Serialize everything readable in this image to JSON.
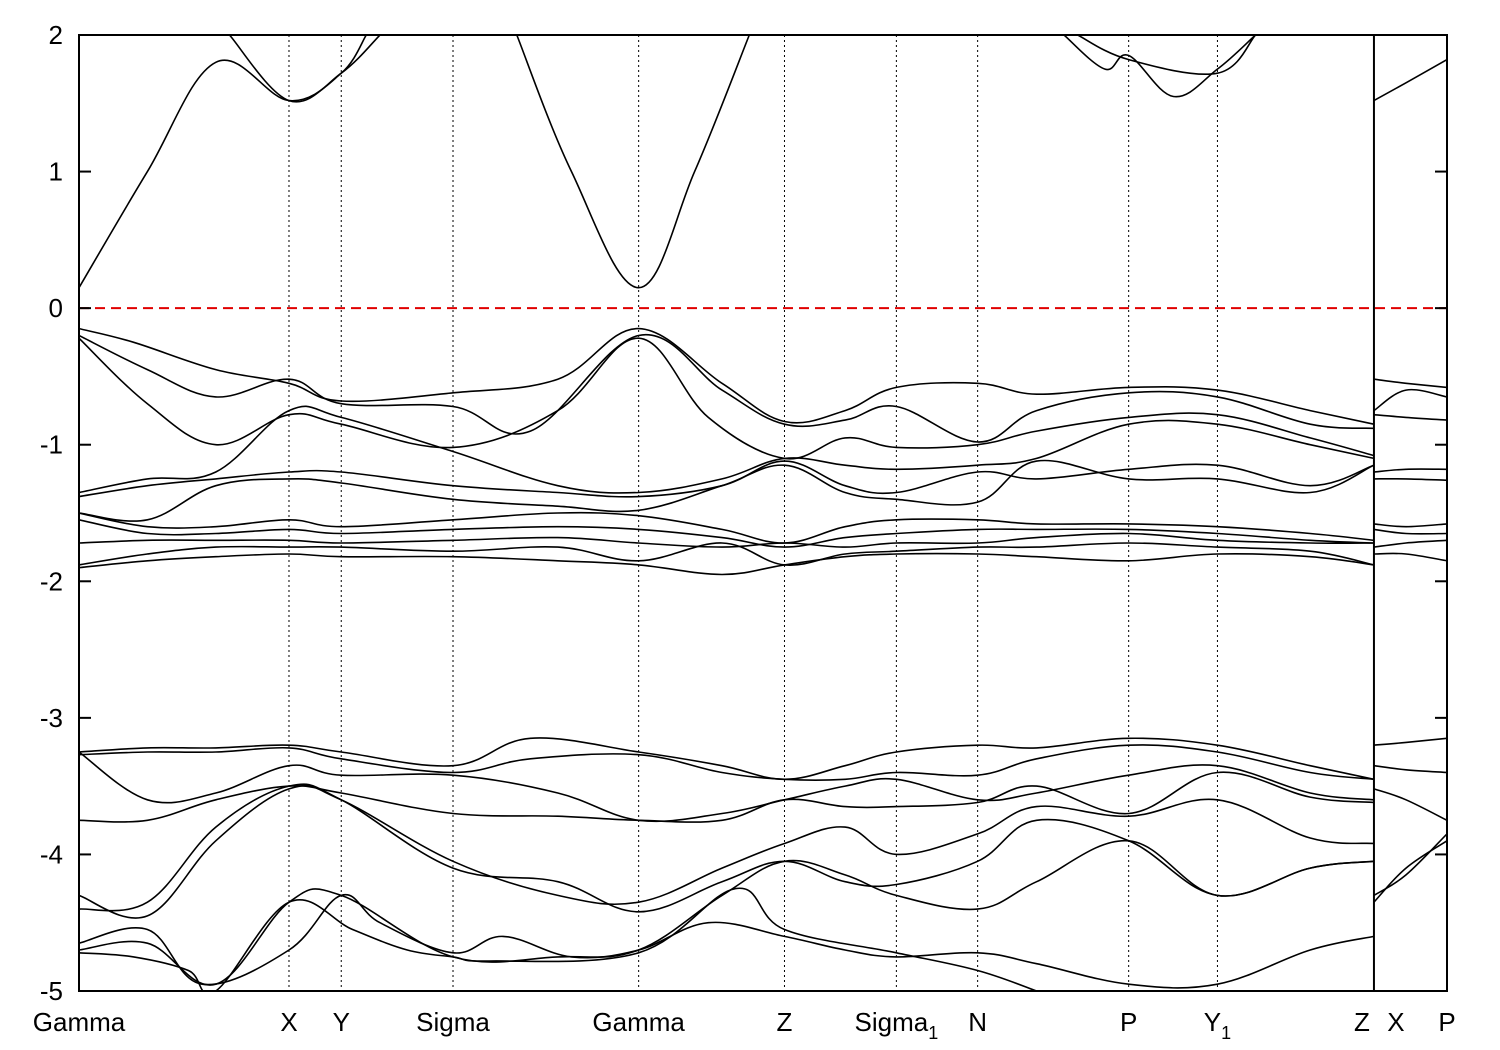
{
  "chart_data": {
    "type": "line",
    "title": "",
    "xlabel": "",
    "ylabel": "",
    "ylim": [
      -5,
      2
    ],
    "y_ticks": [
      -5,
      -4,
      -3,
      -2,
      -1,
      0,
      1,
      2
    ],
    "k_points": [
      {
        "label": "Gamma",
        "sub": "",
        "x": 0
      },
      {
        "label": "X",
        "sub": "",
        "x": 0.1535
      },
      {
        "label": "Y",
        "sub": "",
        "x": 0.1917
      },
      {
        "label": "Sigma",
        "sub": "",
        "x": 0.2734
      },
      {
        "label": "Gamma",
        "sub": "",
        "x": 0.4091
      },
      {
        "label": "Z",
        "sub": "",
        "x": 0.5157
      },
      {
        "label": "Sigma",
        "sub": "1",
        "x": 0.5975
      },
      {
        "label": "N",
        "sub": "",
        "x": 0.6569
      },
      {
        "label": "P",
        "sub": "",
        "x": 0.7673
      },
      {
        "label": "Y",
        "sub": "1",
        "x": 0.8322
      },
      {
        "label": "Z",
        "sub": "",
        "x": 0.9466
      },
      {
        "label": "X",
        "sub": "",
        "x": 0.9466
      },
      {
        "label": "P",
        "sub": "",
        "x": 1.0
      }
    ],
    "path_break_at": 0.9466,
    "fermi_level": {
      "y": 0,
      "color": "#e00000",
      "style": "dashed"
    },
    "band_color": "#000000",
    "bands": [
      {
        "x": [
          0,
          0.05,
          0.1,
          0.1535,
          0.1917,
          0.21
        ],
        "y": [
          0.15,
          1.0,
          1.8,
          1.52,
          1.72,
          2.0
        ]
      },
      {
        "x": [
          0.11,
          0.1535,
          0.1917,
          0.22
        ],
        "y": [
          2.0,
          1.52,
          1.72,
          2.0
        ]
      },
      {
        "x": [
          0.32,
          0.36,
          0.4091,
          0.45,
          0.49
        ],
        "y": [
          2.0,
          1.0,
          0.15,
          1.0,
          2.0
        ]
      },
      {
        "x": [
          0.72,
          0.75,
          0.7673,
          0.8,
          0.8322,
          0.86
        ],
        "y": [
          2.0,
          1.75,
          1.85,
          1.55,
          1.75,
          2.0
        ]
      },
      {
        "x": [
          0.73,
          0.7673,
          0.8322,
          0.86
        ],
        "y": [
          2.0,
          1.82,
          1.72,
          2.0
        ]
      },
      {
        "x": [
          0.9466,
          0.97,
          1.0
        ],
        "y": [
          1.52,
          1.65,
          1.82
        ]
      },
      {
        "x": [
          0,
          0.04,
          0.1,
          0.1535,
          0.1917,
          0.2734,
          0.35,
          0.4091,
          0.47,
          0.5157,
          0.56,
          0.5975,
          0.6569,
          0.7,
          0.7673,
          0.8322,
          0.9,
          0.9466
        ],
        "y": [
          -0.15,
          -0.25,
          -0.45,
          -0.55,
          -0.68,
          -0.62,
          -0.52,
          -0.15,
          -0.55,
          -0.83,
          -0.75,
          -0.58,
          -0.55,
          -0.63,
          -0.58,
          -0.6,
          -0.75,
          -0.85
        ]
      },
      {
        "x": [
          0,
          0.05,
          0.1,
          0.1535,
          0.1917,
          0.2734,
          0.33,
          0.4091,
          0.47,
          0.5157,
          0.56,
          0.5975,
          0.6569,
          0.7,
          0.7673,
          0.8322,
          0.9,
          0.9466
        ],
        "y": [
          -0.2,
          -0.45,
          -0.65,
          -0.52,
          -0.7,
          -0.72,
          -0.9,
          -0.2,
          -0.6,
          -0.85,
          -0.82,
          -0.72,
          -0.98,
          -0.75,
          -0.62,
          -0.65,
          -0.85,
          -0.88
        ]
      },
      {
        "x": [
          0,
          0.05,
          0.1,
          0.1535,
          0.1917,
          0.2734,
          0.35,
          0.4091,
          0.46,
          0.5157,
          0.56,
          0.5975,
          0.6569,
          0.7,
          0.7673,
          0.8322,
          0.9,
          0.9466
        ],
        "y": [
          -0.22,
          -0.7,
          -1.0,
          -0.78,
          -0.85,
          -1.02,
          -0.75,
          -0.22,
          -0.8,
          -1.1,
          -0.95,
          -1.02,
          -1.0,
          -0.9,
          -0.8,
          -0.78,
          -0.95,
          -1.08
        ]
      },
      {
        "x": [
          0,
          0.05,
          0.1,
          0.1535,
          0.1917,
          0.2734,
          0.35,
          0.4091,
          0.47,
          0.5157,
          0.56,
          0.5975,
          0.6569,
          0.7,
          0.7673,
          0.8322,
          0.9,
          0.9466
        ],
        "y": [
          -1.35,
          -1.25,
          -1.2,
          -0.75,
          -0.8,
          -1.05,
          -1.3,
          -1.35,
          -1.25,
          -1.1,
          -1.15,
          -1.18,
          -1.15,
          -1.1,
          -0.85,
          -0.85,
          -1.0,
          -1.1
        ]
      },
      {
        "x": [
          0,
          0.05,
          0.1,
          0.1535,
          0.1917,
          0.2734,
          0.35,
          0.4091,
          0.47,
          0.5157,
          0.56,
          0.5975,
          0.6569,
          0.7,
          0.7673,
          0.8322,
          0.9,
          0.9466
        ],
        "y": [
          -1.38,
          -1.3,
          -1.25,
          -1.2,
          -1.2,
          -1.3,
          -1.35,
          -1.38,
          -1.3,
          -1.12,
          -1.3,
          -1.35,
          -1.2,
          -1.25,
          -1.18,
          -1.15,
          -1.3,
          -1.15
        ]
      },
      {
        "x": [
          0,
          0.05,
          0.1,
          0.1535,
          0.1917,
          0.2734,
          0.35,
          0.4091,
          0.47,
          0.5157,
          0.56,
          0.5975,
          0.6569,
          0.7,
          0.7673,
          0.8322,
          0.9,
          0.9466
        ],
        "y": [
          -1.5,
          -1.55,
          -1.3,
          -1.25,
          -1.28,
          -1.4,
          -1.45,
          -1.48,
          -1.3,
          -1.15,
          -1.35,
          -1.4,
          -1.42,
          -1.12,
          -1.25,
          -1.25,
          -1.35,
          -1.15
        ]
      },
      {
        "x": [
          0,
          0.05,
          0.1,
          0.1535,
          0.1917,
          0.2734,
          0.35,
          0.4091,
          0.47,
          0.5157,
          0.56,
          0.5975,
          0.6569,
          0.7,
          0.7673,
          0.8322,
          0.9,
          0.9466
        ],
        "y": [
          -1.5,
          -1.6,
          -1.6,
          -1.55,
          -1.6,
          -1.55,
          -1.5,
          -1.52,
          -1.62,
          -1.72,
          -1.6,
          -1.55,
          -1.55,
          -1.58,
          -1.58,
          -1.6,
          -1.65,
          -1.7
        ]
      },
      {
        "x": [
          0,
          0.05,
          0.1,
          0.1535,
          0.1917,
          0.2734,
          0.35,
          0.4091,
          0.47,
          0.5157,
          0.56,
          0.5975,
          0.6569,
          0.7,
          0.7673,
          0.8322,
          0.9,
          0.9466
        ],
        "y": [
          -1.55,
          -1.65,
          -1.65,
          -1.62,
          -1.65,
          -1.62,
          -1.6,
          -1.62,
          -1.68,
          -1.75,
          -1.68,
          -1.65,
          -1.62,
          -1.62,
          -1.62,
          -1.65,
          -1.7,
          -1.72
        ]
      },
      {
        "x": [
          0,
          0.05,
          0.1,
          0.1535,
          0.1917,
          0.2734,
          0.35,
          0.4091,
          0.47,
          0.5157,
          0.56,
          0.5975,
          0.6569,
          0.7,
          0.7673,
          0.8322,
          0.9,
          0.9466
        ],
        "y": [
          -1.72,
          -1.7,
          -1.7,
          -1.7,
          -1.72,
          -1.7,
          -1.68,
          -1.72,
          -1.75,
          -1.72,
          -1.75,
          -1.72,
          -1.72,
          -1.68,
          -1.65,
          -1.7,
          -1.72,
          -1.72
        ]
      },
      {
        "x": [
          0,
          0.05,
          0.1,
          0.1535,
          0.1917,
          0.2734,
          0.35,
          0.4091,
          0.47,
          0.5157,
          0.56,
          0.5975,
          0.6569,
          0.7,
          0.7673,
          0.8322,
          0.9,
          0.9466
        ],
        "y": [
          -1.88,
          -1.8,
          -1.75,
          -1.75,
          -1.75,
          -1.78,
          -1.75,
          -1.85,
          -1.72,
          -1.88,
          -1.8,
          -1.78,
          -1.75,
          -1.75,
          -1.72,
          -1.75,
          -1.78,
          -1.88
        ]
      },
      {
        "x": [
          0,
          0.05,
          0.1,
          0.1535,
          0.1917,
          0.2734,
          0.35,
          0.4091,
          0.47,
          0.5157,
          0.56,
          0.5975,
          0.6569,
          0.7,
          0.7673,
          0.8322,
          0.9,
          0.9466
        ],
        "y": [
          -1.9,
          -1.85,
          -1.82,
          -1.8,
          -1.82,
          -1.82,
          -1.85,
          -1.88,
          -1.95,
          -1.88,
          -1.82,
          -1.8,
          -1.8,
          -1.82,
          -1.85,
          -1.8,
          -1.82,
          -1.88
        ]
      },
      {
        "x": [
          0,
          0.05,
          0.1,
          0.1535,
          0.1917,
          0.2734,
          0.33,
          0.4091,
          0.47,
          0.5157,
          0.56,
          0.5975,
          0.6569,
          0.7,
          0.7673,
          0.8322,
          0.9,
          0.9466
        ],
        "y": [
          -3.25,
          -3.22,
          -3.22,
          -3.2,
          -3.25,
          -3.35,
          -3.15,
          -3.25,
          -3.35,
          -3.45,
          -3.35,
          -3.25,
          -3.2,
          -3.22,
          -3.15,
          -3.2,
          -3.35,
          -3.45
        ]
      },
      {
        "x": [
          0,
          0.05,
          0.1,
          0.1535,
          0.1917,
          0.2734,
          0.33,
          0.4091,
          0.47,
          0.5157,
          0.56,
          0.5975,
          0.6569,
          0.7,
          0.7673,
          0.8322,
          0.9,
          0.9466
        ],
        "y": [
          -3.27,
          -3.25,
          -3.25,
          -3.22,
          -3.3,
          -3.4,
          -3.3,
          -3.27,
          -3.4,
          -3.45,
          -3.45,
          -3.4,
          -3.42,
          -3.3,
          -3.2,
          -3.25,
          -3.4,
          -3.45
        ]
      },
      {
        "x": [
          0,
          0.05,
          0.1,
          0.1535,
          0.1917,
          0.2734,
          0.35,
          0.4091,
          0.47,
          0.5157,
          0.56,
          0.5975,
          0.6569,
          0.7,
          0.7673,
          0.8322,
          0.9,
          0.9466
        ],
        "y": [
          -3.25,
          -3.6,
          -3.55,
          -3.35,
          -3.42,
          -3.42,
          -3.55,
          -3.75,
          -3.7,
          -3.6,
          -3.5,
          -3.45,
          -3.6,
          -3.55,
          -3.42,
          -3.35,
          -3.55,
          -3.6
        ]
      },
      {
        "x": [
          0,
          0.05,
          0.1,
          0.1535,
          0.1917,
          0.2734,
          0.35,
          0.4091,
          0.47,
          0.5157,
          0.56,
          0.5975,
          0.6569,
          0.7,
          0.7673,
          0.8322,
          0.9,
          0.9466
        ],
        "y": [
          -3.75,
          -3.75,
          -3.6,
          -3.5,
          -3.55,
          -3.7,
          -3.72,
          -3.75,
          -3.75,
          -3.6,
          -3.65,
          -3.65,
          -3.62,
          -3.5,
          -3.7,
          -3.4,
          -3.58,
          -3.62
        ]
      },
      {
        "x": [
          0,
          0.05,
          0.1,
          0.1535,
          0.1917,
          0.2734,
          0.35,
          0.4091,
          0.47,
          0.5157,
          0.56,
          0.5975,
          0.6569,
          0.7,
          0.7673,
          0.8322,
          0.9,
          0.9466
        ],
        "y": [
          -4.3,
          -4.45,
          -3.9,
          -3.52,
          -3.6,
          -4.05,
          -4.3,
          -4.35,
          -4.1,
          -3.92,
          -3.8,
          -4.0,
          -3.85,
          -3.65,
          -3.72,
          -3.6,
          -3.88,
          -3.92
        ]
      },
      {
        "x": [
          0,
          0.05,
          0.1,
          0.1535,
          0.1917,
          0.2734,
          0.35,
          0.4091,
          0.47,
          0.5157,
          0.56,
          0.5975,
          0.6569,
          0.7,
          0.7673,
          0.8322,
          0.9,
          0.9466
        ],
        "y": [
          -4.4,
          -4.35,
          -3.8,
          -3.5,
          -3.6,
          -4.1,
          -4.2,
          -4.42,
          -4.2,
          -4.05,
          -4.2,
          -4.22,
          -4.05,
          -3.75,
          -3.9,
          -4.3,
          -4.1,
          -4.05
        ]
      },
      {
        "x": [
          0,
          0.05,
          0.1,
          0.1535,
          0.1917,
          0.2734,
          0.35,
          0.4091,
          0.47,
          0.5157,
          0.56,
          0.5975,
          0.6569,
          0.7,
          0.7673,
          0.8322,
          0.9,
          0.9466
        ],
        "y": [
          -4.7,
          -4.65,
          -4.95,
          -4.35,
          -4.3,
          -4.75,
          -4.75,
          -4.7,
          -4.3,
          -4.05,
          -4.15,
          -4.3,
          -4.4,
          -4.2,
          -3.9,
          -4.3,
          -4.1,
          -4.05
        ]
      },
      {
        "x": [
          0,
          0.05,
          0.09,
          0.1535,
          0.1917,
          0.22,
          0.2734,
          0.31,
          0.36,
          0.4091,
          0.46,
          0.5157,
          0.56,
          0.5975,
          0.6569,
          0.7,
          0.7673,
          0.8322,
          0.9,
          0.9466
        ],
        "y": [
          -4.65,
          -4.55,
          -4.95,
          -4.7,
          -4.3,
          -4.5,
          -4.72,
          -4.6,
          -4.75,
          -4.7,
          -4.5,
          -4.6,
          -4.7,
          -4.75,
          -4.72,
          -4.8,
          -4.95,
          -4.95,
          -4.7,
          -4.6
        ]
      },
      {
        "x": [
          0,
          0.04,
          0.08,
          0.1,
          0.1535,
          0.2,
          0.24,
          0.2734,
          0.3,
          0.4091,
          0.48,
          0.5157,
          0.5975,
          0.6569,
          0.7
        ],
        "y": [
          -4.72,
          -4.75,
          -4.85,
          -5.0,
          -4.35,
          -4.55,
          -4.7,
          -4.75,
          -4.78,
          -4.72,
          -4.25,
          -4.55,
          -4.72,
          -4.85,
          -5.0
        ]
      },
      {
        "x": [
          0.9466,
          0.97,
          1.0
        ],
        "y": [
          -0.52,
          -0.55,
          -0.58
        ]
      },
      {
        "x": [
          0.9466,
          0.97,
          1.0
        ],
        "y": [
          -0.75,
          -0.6,
          -0.65
        ]
      },
      {
        "x": [
          0.9466,
          0.97,
          1.0
        ],
        "y": [
          -0.78,
          -0.8,
          -0.82
        ]
      },
      {
        "x": [
          0.9466,
          0.97,
          1.0
        ],
        "y": [
          -1.2,
          -1.18,
          -1.18
        ]
      },
      {
        "x": [
          0.9466,
          0.97,
          1.0
        ],
        "y": [
          -1.25,
          -1.25,
          -1.26
        ]
      },
      {
        "x": [
          0.9466,
          0.97,
          1.0
        ],
        "y": [
          -1.58,
          -1.6,
          -1.58
        ]
      },
      {
        "x": [
          0.9466,
          0.97,
          1.0
        ],
        "y": [
          -1.62,
          -1.65,
          -1.65
        ]
      },
      {
        "x": [
          0.9466,
          0.97,
          1.0
        ],
        "y": [
          -1.75,
          -1.72,
          -1.7
        ]
      },
      {
        "x": [
          0.9466,
          0.97,
          1.0
        ],
        "y": [
          -1.8,
          -1.8,
          -1.85
        ]
      },
      {
        "x": [
          0.9466,
          0.97,
          1.0
        ],
        "y": [
          -3.2,
          -3.18,
          -3.15
        ]
      },
      {
        "x": [
          0.9466,
          0.97,
          1.0
        ],
        "y": [
          -3.35,
          -3.38,
          -3.4
        ]
      },
      {
        "x": [
          0.9466,
          0.97,
          1.0
        ],
        "y": [
          -3.52,
          -3.6,
          -3.75
        ]
      },
      {
        "x": [
          0.9466,
          0.97,
          1.0
        ],
        "y": [
          -4.35,
          -4.1,
          -3.9
        ]
      },
      {
        "x": [
          0.9466,
          0.97,
          1.0
        ],
        "y": [
          -4.3,
          -4.15,
          -3.85
        ]
      }
    ]
  }
}
